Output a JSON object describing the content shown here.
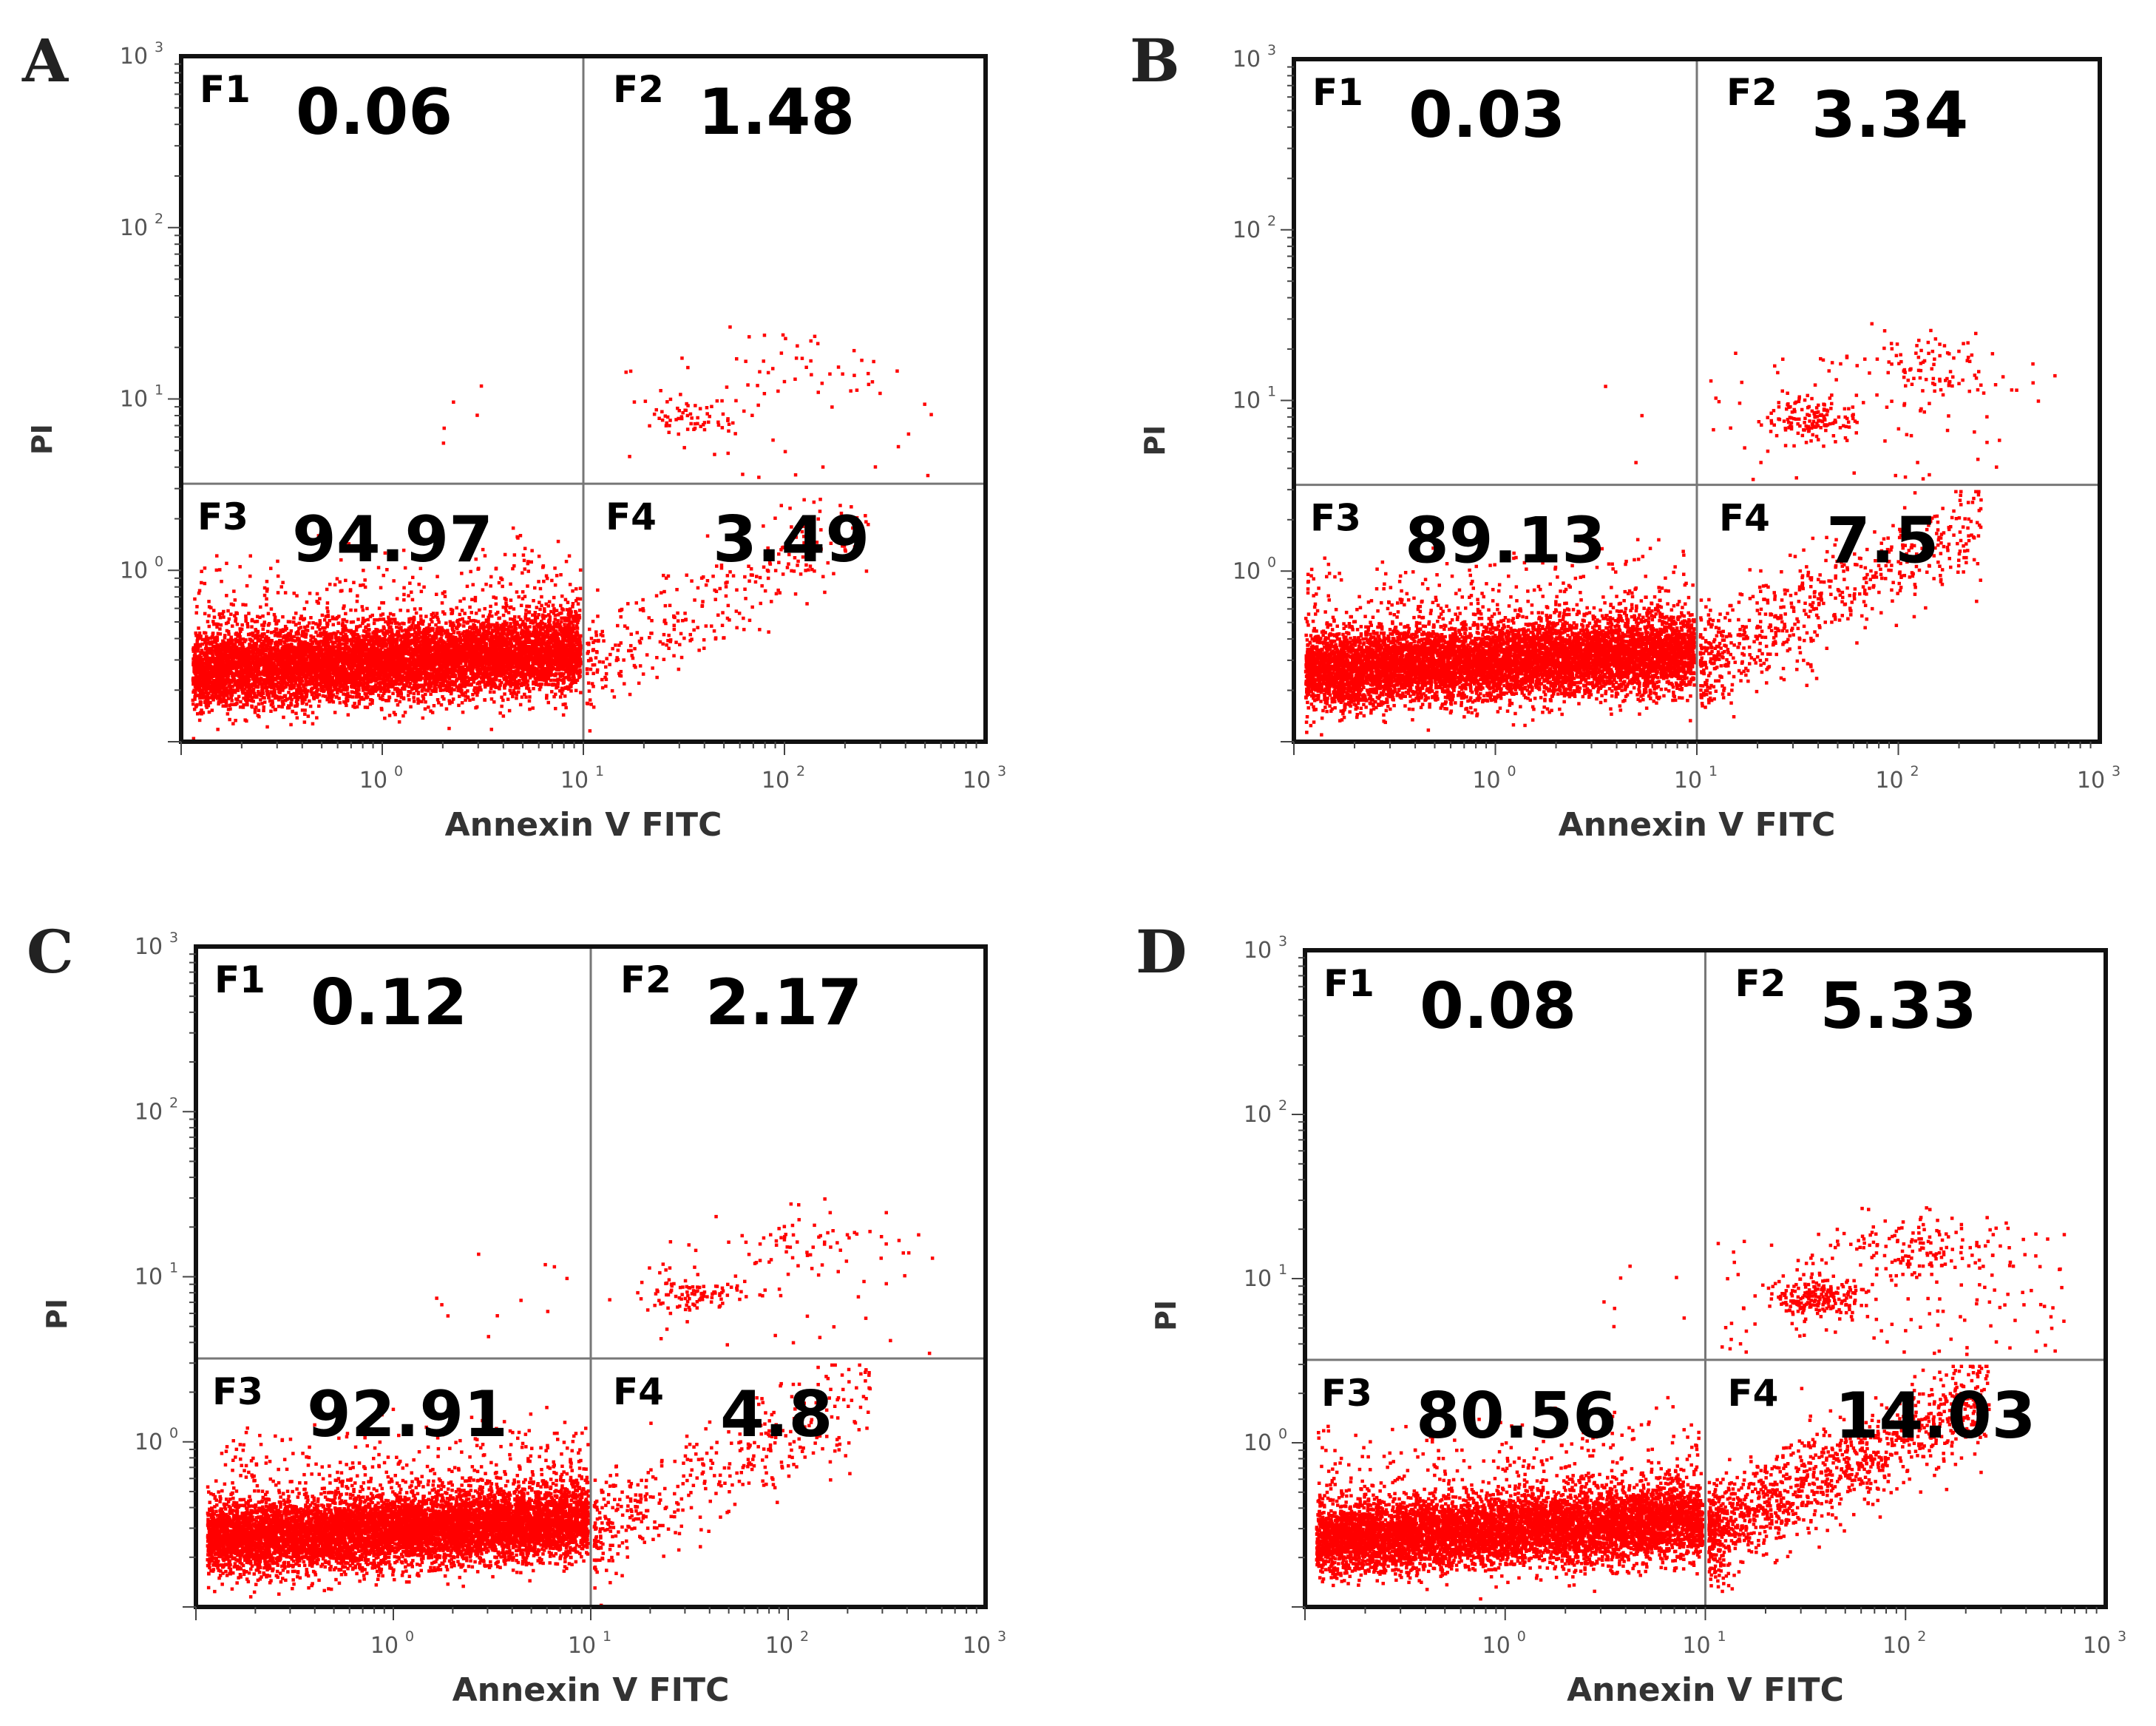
{
  "chart_data": [
    {
      "type": "scatter",
      "panel": "A",
      "xlabel": "Annexin V FITC",
      "ylabel": "PI",
      "x_ticks": [
        {
          "base": "10",
          "exp": "0"
        },
        {
          "base": "10",
          "exp": "1"
        },
        {
          "base": "10",
          "exp": "2"
        },
        {
          "base": "10",
          "exp": "3"
        }
      ],
      "y_ticks": [
        {
          "base": "10",
          "exp": "0"
        },
        {
          "base": "10",
          "exp": "1"
        },
        {
          "base": "10",
          "exp": "2"
        },
        {
          "base": "10",
          "exp": "3"
        }
      ],
      "xlim": [
        0.1,
        1000
      ],
      "ylim": [
        0.1,
        1000
      ],
      "gate": {
        "x": 10,
        "y": 3.2
      },
      "quadrants": [
        {
          "label": "F1",
          "value": "0.06"
        },
        {
          "label": "F2",
          "value": "1.48"
        },
        {
          "label": "F3",
          "value": "94.97"
        },
        {
          "label": "F4",
          "value": "3.49"
        }
      ],
      "point_color": "#ff0000"
    },
    {
      "type": "scatter",
      "panel": "B",
      "xlabel": "Annexin V FITC",
      "ylabel": "PI",
      "x_ticks": [
        {
          "base": "10",
          "exp": "0"
        },
        {
          "base": "10",
          "exp": "1"
        },
        {
          "base": "10",
          "exp": "2"
        },
        {
          "base": "10",
          "exp": "3"
        }
      ],
      "y_ticks": [
        {
          "base": "10",
          "exp": "0"
        },
        {
          "base": "10",
          "exp": "1"
        },
        {
          "base": "10",
          "exp": "2"
        },
        {
          "base": "10",
          "exp": "3"
        }
      ],
      "xlim": [
        0.1,
        1000
      ],
      "ylim": [
        0.1,
        1000
      ],
      "gate": {
        "x": 10,
        "y": 3.2
      },
      "quadrants": [
        {
          "label": "F1",
          "value": "0.03"
        },
        {
          "label": "F2",
          "value": "3.34"
        },
        {
          "label": "F3",
          "value": "89.13"
        },
        {
          "label": "F4",
          "value": "7.5"
        }
      ],
      "point_color": "#ff0000"
    },
    {
      "type": "scatter",
      "panel": "C",
      "xlabel": "Annexin V FITC",
      "ylabel": "PI",
      "x_ticks": [
        {
          "base": "10",
          "exp": "0"
        },
        {
          "base": "10",
          "exp": "1"
        },
        {
          "base": "10",
          "exp": "2"
        },
        {
          "base": "10",
          "exp": "3"
        }
      ],
      "y_ticks": [
        {
          "base": "10",
          "exp": "0"
        },
        {
          "base": "10",
          "exp": "1"
        },
        {
          "base": "10",
          "exp": "2"
        },
        {
          "base": "10",
          "exp": "3"
        }
      ],
      "xlim": [
        0.1,
        1000
      ],
      "ylim": [
        0.1,
        1000
      ],
      "gate": {
        "x": 10,
        "y": 3.2
      },
      "quadrants": [
        {
          "label": "F1",
          "value": "0.12"
        },
        {
          "label": "F2",
          "value": "2.17"
        },
        {
          "label": "F3",
          "value": "92.91"
        },
        {
          "label": "F4",
          "value": "4.8"
        }
      ],
      "point_color": "#ff0000"
    },
    {
      "type": "scatter",
      "panel": "D",
      "xlabel": "Annexin V FITC",
      "ylabel": "PI",
      "x_ticks": [
        {
          "base": "10",
          "exp": "0"
        },
        {
          "base": "10",
          "exp": "1"
        },
        {
          "base": "10",
          "exp": "2"
        },
        {
          "base": "10",
          "exp": "3"
        }
      ],
      "y_ticks": [
        {
          "base": "10",
          "exp": "0"
        },
        {
          "base": "10",
          "exp": "1"
        },
        {
          "base": "10",
          "exp": "2"
        },
        {
          "base": "10",
          "exp": "3"
        }
      ],
      "xlim": [
        0.1,
        1000
      ],
      "ylim": [
        0.1,
        1000
      ],
      "gate": {
        "x": 10,
        "y": 3.2
      },
      "quadrants": [
        {
          "label": "F1",
          "value": "0.08"
        },
        {
          "label": "F2",
          "value": "5.33"
        },
        {
          "label": "F3",
          "value": "80.56"
        },
        {
          "label": "F4",
          "value": "14.03"
        }
      ],
      "point_color": "#ff0000"
    }
  ]
}
